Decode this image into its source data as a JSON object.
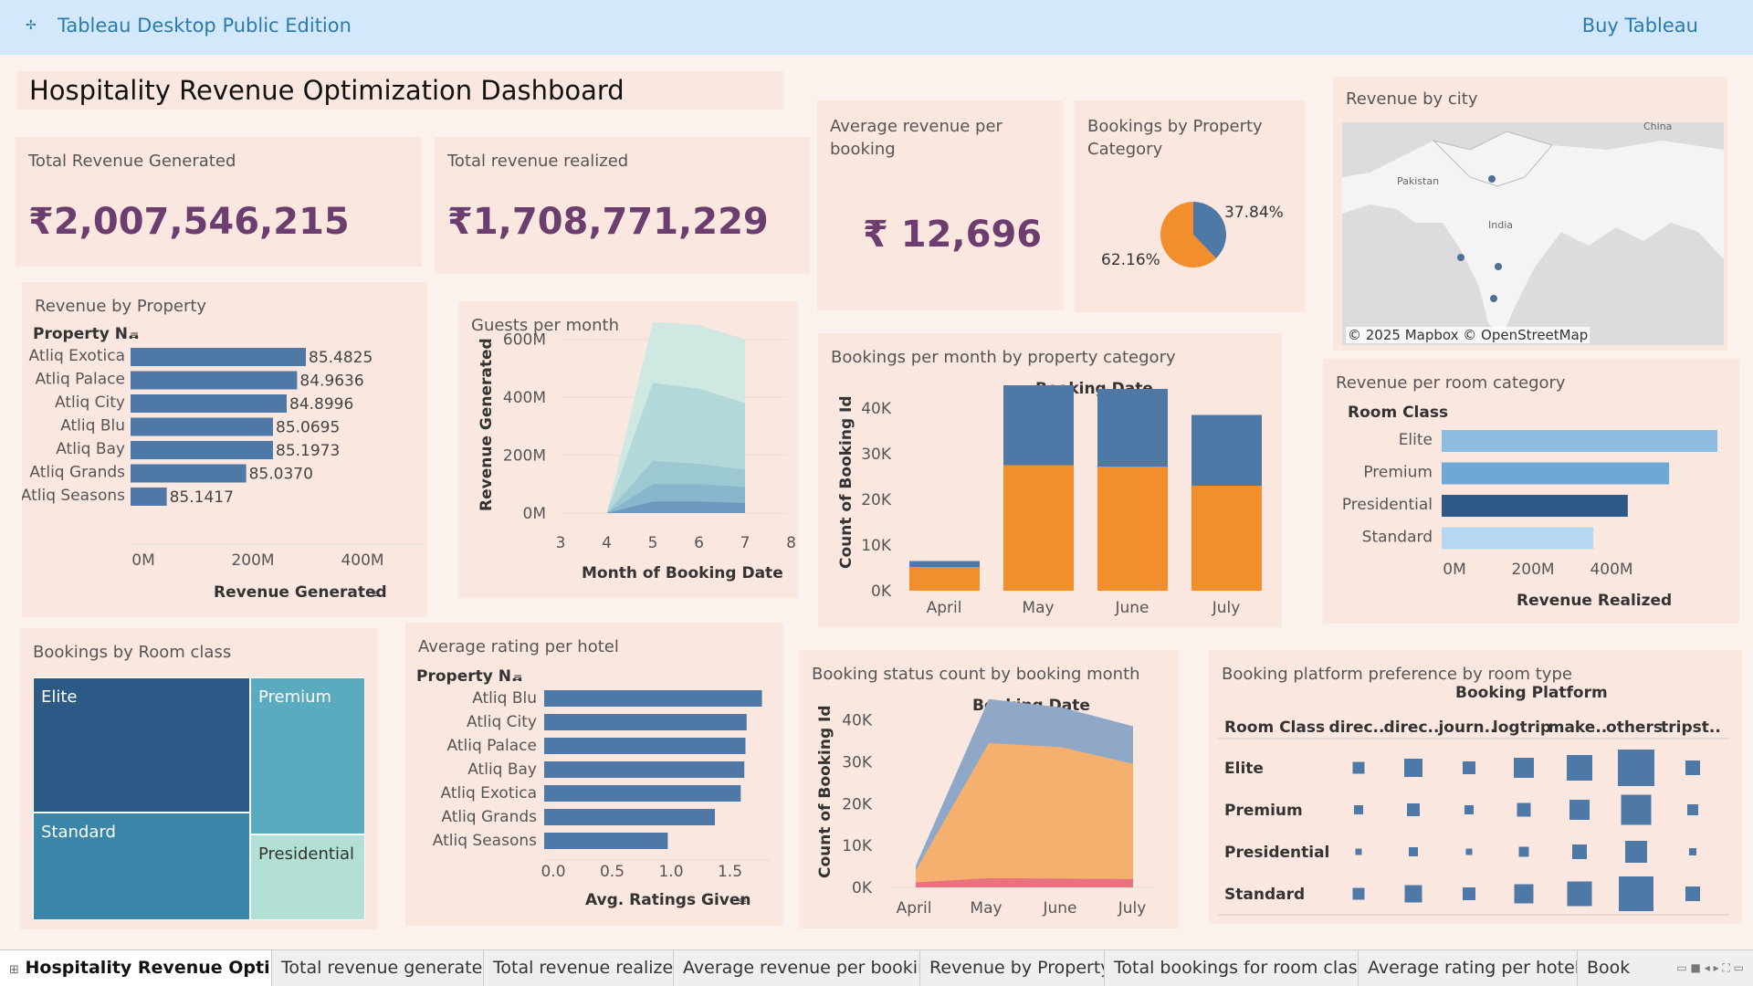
{
  "app": {
    "title": "Tableau Desktop Public Edition",
    "buy": "Buy Tableau"
  },
  "dashboard": {
    "title": "Hospitality Revenue Optimization Dashboard"
  },
  "kpis": {
    "total_revenue": {
      "label": "Total Revenue Generated",
      "value": "₹2,007,546,215"
    },
    "revenue_realized": {
      "label": "Total revenue realized",
      "value": "₹1,708,771,229"
    },
    "avg_revenue": {
      "label": "Average revenue per booking",
      "value": "₹ 12,696"
    }
  },
  "colors": {
    "blue": "#4e79a7",
    "orange": "#f28e2b",
    "dark_blue": "#2c5985",
    "light_blue": "#8cbde0",
    "purple_kpi": "#6b3e6f"
  },
  "tabs": [
    "Hospitality Revenue Optimiz...",
    "Total revenue generated",
    "Total revenue realized",
    "Average revenue per booking",
    "Revenue by Property",
    "Total bookings for room class",
    "Average rating per hotel",
    "Booking"
  ],
  "chart_data": [
    {
      "id": "revenue_by_property",
      "type": "bar",
      "title": "Revenue by Property",
      "row_header": "Property N..",
      "categories": [
        "Atliq Exotica",
        "Atliq Palace",
        "Atliq City",
        "Atliq Blu",
        "Atliq Bay",
        "Atliq Grands",
        "Atliq Seasons"
      ],
      "values": [
        320,
        304,
        285,
        260,
        260,
        211,
        66
      ],
      "data_labels": [
        "85.4825",
        "84.9636",
        "84.8996",
        "85.0695",
        "85.1973",
        "85.0370",
        "85.1417"
      ],
      "xlabel": "Revenue Generated",
      "ticks": [
        "0M",
        "200M",
        "400M"
      ],
      "xlim": [
        0,
        500
      ]
    },
    {
      "id": "guests_per_month",
      "type": "area",
      "title": "Guests per month",
      "xlabel": "Month of Booking Date",
      "ylabel": "Revenue Generated",
      "x_ticks": [
        "3",
        "4",
        "5",
        "6",
        "7",
        "8"
      ],
      "y_ticks": [
        "0M",
        "200M",
        "400M",
        "600M"
      ],
      "x": [
        4,
        5,
        6,
        7
      ],
      "series_totals": [
        [
          0,
          660,
          650,
          600
        ],
        [
          0,
          450,
          430,
          380
        ],
        [
          0,
          180,
          170,
          150
        ],
        [
          0,
          100,
          100,
          90
        ],
        [
          0,
          40,
          40,
          35
        ]
      ],
      "ylim": [
        0,
        700
      ]
    },
    {
      "id": "bookings_per_month_category",
      "type": "bar",
      "title": "Bookings per month by property category",
      "header": "Booking Date",
      "categories": [
        "April",
        "May",
        "June",
        "July"
      ],
      "series": [
        {
          "values": [
            5200,
            27500,
            27200,
            23000
          ]
        },
        {
          "values": [
            1300,
            17500,
            17000,
            15500
          ]
        }
      ],
      "ylabel": "Count of Booking Id",
      "y_ticks": [
        "0K",
        "10K",
        "20K",
        "30K",
        "40K"
      ],
      "ylim": [
        0,
        45000
      ]
    },
    {
      "id": "bookings_by_property_category",
      "type": "pie",
      "title": "Bookings by Property Category",
      "slices": [
        {
          "label": "37.84%",
          "value": 37.84
        },
        {
          "label": "62.16%",
          "value": 62.16
        }
      ]
    },
    {
      "id": "revenue_per_room_category",
      "type": "bar",
      "title": "Revenue per room category",
      "row_header": "Room Class",
      "categories": [
        "Elite",
        "Premium",
        "Presidential",
        "Standard"
      ],
      "values": [
        600,
        495,
        405,
        330
      ],
      "xlabel": "Revenue Realized",
      "ticks": [
        "0M",
        "200M",
        "400M"
      ],
      "xlim": [
        0,
        600
      ]
    },
    {
      "id": "bookings_by_room_class",
      "type": "heatmap",
      "title": "Bookings by Room class",
      "cells": [
        "Elite",
        "Premium",
        "Standard",
        "Presidential"
      ]
    },
    {
      "id": "average_rating_per_hotel",
      "type": "bar",
      "title": "Average rating per hotel",
      "row_header": "Property N..",
      "categories": [
        "Atliq Blu",
        "Atliq City",
        "Atliq Palace",
        "Atliq Bay",
        "Atliq Exotica",
        "Atliq Grands",
        "Atliq Seasons"
      ],
      "values": [
        1.85,
        1.72,
        1.71,
        1.7,
        1.67,
        1.45,
        1.05
      ],
      "xlabel": "Avg. Ratings Given",
      "ticks": [
        "0.0",
        "0.5",
        "1.0",
        "1.5"
      ],
      "xlim": [
        0,
        1.9
      ]
    },
    {
      "id": "booking_status_count",
      "type": "area",
      "title": "Booking status count by booking month",
      "header": "Booking Date",
      "categories": [
        "April",
        "May",
        "June",
        "July"
      ],
      "ylabel": "Count of Booking Id",
      "y_ticks": [
        "0K",
        "10K",
        "20K",
        "30K",
        "40K"
      ],
      "series_totals": [
        [
          5200,
          45000,
          43000,
          38500
        ],
        [
          4000,
          34500,
          33500,
          29500
        ],
        [
          1200,
          2200,
          2100,
          2000
        ]
      ],
      "ylim": [
        0,
        48000
      ]
    },
    {
      "id": "booking_platform_preference",
      "type": "heatmap",
      "title": "Booking platform preference by room type",
      "header": "Booking Platform",
      "row_header": "Room Class",
      "columns": [
        "direc..",
        "direc..",
        "journ..",
        "logtrip",
        "make..",
        "others",
        "tripst.."
      ],
      "rows": [
        "Elite",
        "Premium",
        "Presidential",
        "Standard"
      ],
      "sizes": [
        [
          13,
          20,
          14,
          22,
          28,
          40,
          16
        ],
        [
          10,
          14,
          10,
          15,
          22,
          33,
          12
        ],
        [
          7,
          10,
          7,
          11,
          16,
          24,
          8
        ],
        [
          13,
          19,
          14,
          21,
          27,
          38,
          16
        ]
      ]
    },
    {
      "id": "revenue_by_city",
      "type": "map",
      "title": "Revenue by city",
      "labels": [
        "Pakistan",
        "India",
        "China"
      ],
      "attribution": "© 2025 Mapbox © OpenStreetMap"
    }
  ]
}
